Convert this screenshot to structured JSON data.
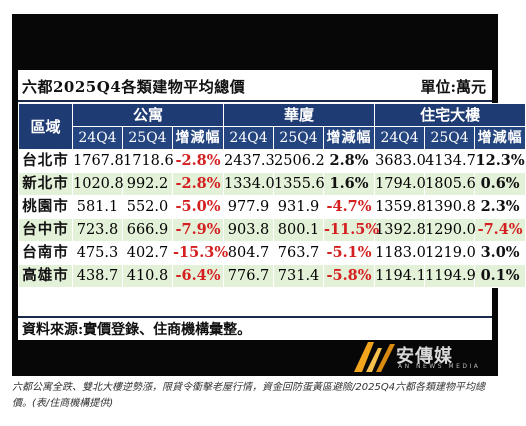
{
  "table_title": "六都2025Q4各類建物平均總價",
  "unit": "單位:萬元",
  "headers": {
    "region": "區域",
    "groups": [
      "公寓",
      "華廈",
      "住宅大樓"
    ],
    "sub": [
      "24Q4",
      "25Q4",
      "增減幅"
    ]
  },
  "rows": [
    {
      "city": "台北市",
      "v": [
        "1767.8",
        "1718.6",
        "-2.8%",
        "2437.3",
        "2506.2",
        "2.8%",
        "3683.0",
        "4134.7",
        "12.3%"
      ]
    },
    {
      "city": "新北市",
      "v": [
        "1020.8",
        "992.2",
        "-2.8%",
        "1334.0",
        "1355.6",
        "1.6%",
        "1794.0",
        "1805.6",
        "0.6%"
      ]
    },
    {
      "city": "桃園市",
      "v": [
        "581.1",
        "552.0",
        "-5.0%",
        "977.9",
        "931.9",
        "-4.7%",
        "1359.8",
        "1390.8",
        "2.3%"
      ]
    },
    {
      "city": "台中市",
      "v": [
        "723.8",
        "666.9",
        "-7.9%",
        "903.8",
        "800.1",
        "-11.5%",
        "1392.8",
        "1290.0",
        "-7.4%"
      ]
    },
    {
      "city": "台南市",
      "v": [
        "475.3",
        "402.7",
        "-15.3%",
        "804.7",
        "763.7",
        "-5.1%",
        "1183.0",
        "1219.0",
        "3.0%"
      ]
    },
    {
      "city": "高雄市",
      "v": [
        "438.7",
        "410.8",
        "-6.4%",
        "776.7",
        "731.4",
        "-5.8%",
        "1194.1",
        "1194.9",
        "0.1%"
      ]
    }
  ],
  "source": "資料來源:實價登錄、住商機構彙整。",
  "logo": {
    "name": "安傳媒",
    "sub": "AN NEWS MEDIA"
  },
  "caption": "六都公寓全跌、雙北大樓逆勢漲，限貸令衝擊老屋行情，資金回防蛋黃區避險/2025Q4六都各類建物平均總價。(表/住商機構提供)",
  "colors": {
    "header": "#1f3b73",
    "stripe": "#e4f1d9",
    "negative": "#d42020",
    "frame": "#070707"
  }
}
